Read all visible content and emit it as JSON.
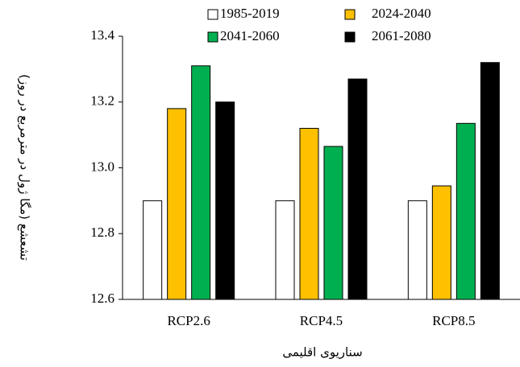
{
  "chart_data": {
    "type": "bar",
    "y_label": "تشعشع (مگا ژول در مترمربع در روز)",
    "x_label": "سناریوی اقلیمی",
    "categories": [
      "RCP2.6",
      "RCP4.5",
      "RCP8.5"
    ],
    "series": [
      {
        "name": "1985-2019",
        "color": "#ffffff",
        "values": [
          12.9,
          12.9,
          12.9
        ]
      },
      {
        "name": "2024-2040",
        "color": "#ffc000",
        "values": [
          13.18,
          13.12,
          12.945
        ]
      },
      {
        "name": "2041-2060",
        "color": "#00b050",
        "values": [
          13.31,
          13.065,
          13.135
        ]
      },
      {
        "name": "2061-2080",
        "color": "#000000",
        "values": [
          13.2,
          13.27,
          13.32
        ]
      }
    ],
    "ylim": [
      12.6,
      13.4
    ],
    "yticks": [
      12.6,
      12.8,
      {
        "value": 13,
        "label": "13.0"
      },
      13.2,
      13.4
    ]
  }
}
